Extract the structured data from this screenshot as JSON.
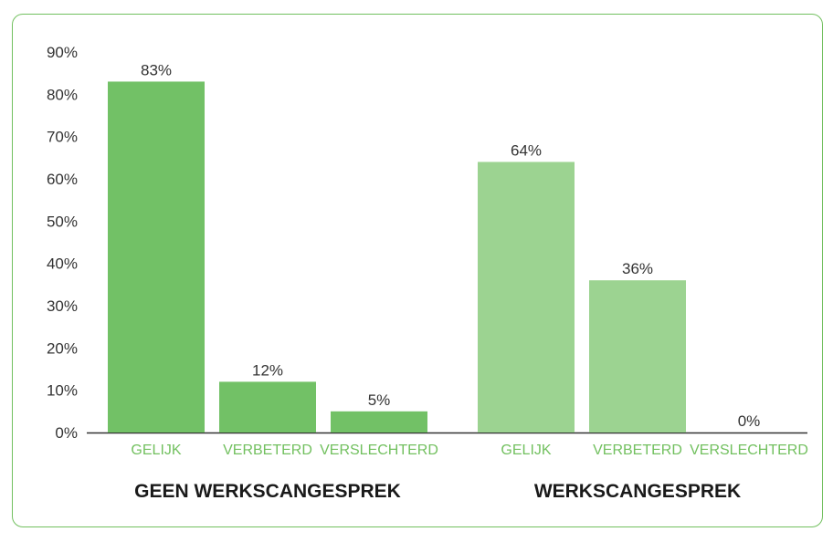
{
  "chart_data": {
    "type": "bar",
    "y_ticks": [
      "90%",
      "80%",
      "70%",
      "60%",
      "50%",
      "40%",
      "30%",
      "20%",
      "10%",
      "0%"
    ],
    "ylim": [
      0,
      90
    ],
    "grid": false,
    "groups": [
      {
        "name": "GEEN WERKSCANGESPREK",
        "color": "#72c166",
        "categories": [
          "GELIJK",
          "VERBETERD",
          "VERSLECHTERD"
        ],
        "values": [
          83,
          12,
          5
        ],
        "labels": [
          "83%",
          "12%",
          "5%"
        ]
      },
      {
        "name": "WERKSCANGESPREK",
        "color": "#9cd391",
        "categories": [
          "GELIJK",
          "VERBETERD",
          "VERSLECHTERD"
        ],
        "values": [
          64,
          36,
          0
        ],
        "labels": [
          "64%",
          "36%",
          "0%"
        ]
      }
    ]
  },
  "colors": {
    "border": "#72c05f",
    "category_text": "#72c05f"
  }
}
